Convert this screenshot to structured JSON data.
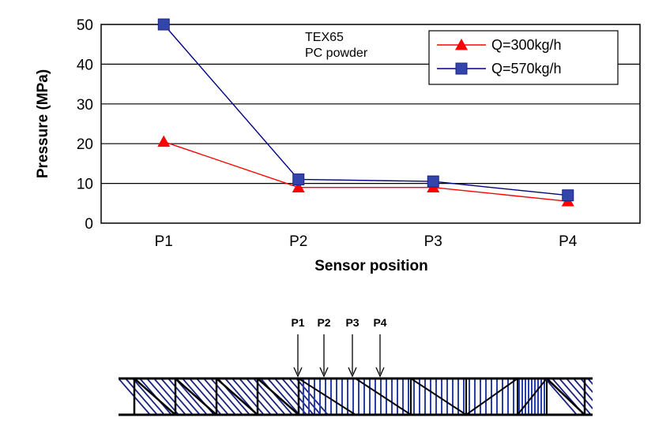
{
  "chart_data": {
    "type": "line",
    "categories": [
      "P1",
      "P2",
      "P3",
      "P4"
    ],
    "series": [
      {
        "name": "Q=300kg/h",
        "values": [
          20.5,
          9.0,
          9.0,
          5.5
        ],
        "color": "#ff0000",
        "marker": "triangle"
      },
      {
        "name": "Q=570kg/h",
        "values": [
          50.0,
          11.0,
          10.5,
          7.0
        ],
        "color": "#000080",
        "marker_color": "#3344aa",
        "marker": "square"
      }
    ],
    "xlabel": "Sensor position",
    "ylabel": "Pressure (MPa)",
    "ylim": [
      0,
      50
    ],
    "yticks": [
      "0",
      "10",
      "20",
      "30",
      "40",
      "50"
    ],
    "grid": "horizontal",
    "legend_position": "top-right",
    "annotation": [
      "TEX65",
      "PC powder"
    ]
  },
  "diagram": {
    "sensor_labels": [
      "P1",
      "P2",
      "P3",
      "P4"
    ]
  }
}
